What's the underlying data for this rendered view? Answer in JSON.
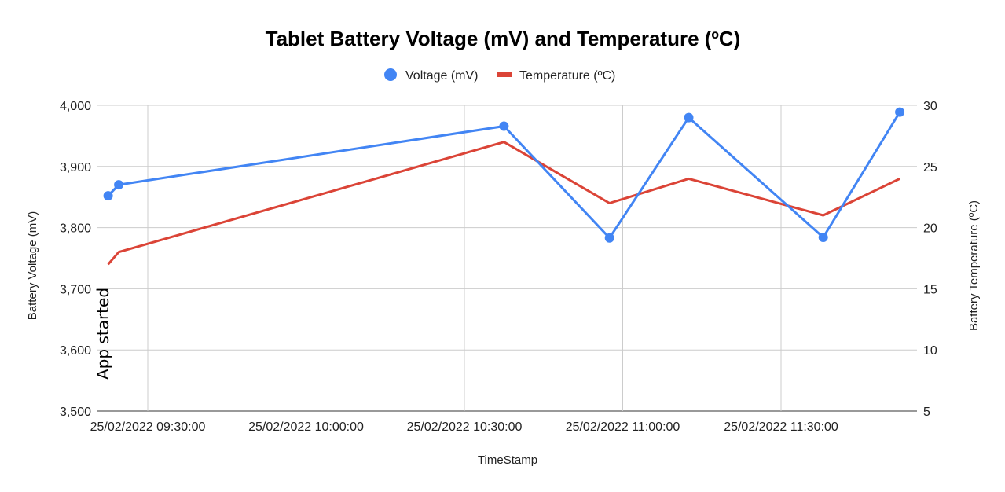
{
  "chart_data": {
    "type": "line",
    "title": "Tablet Battery Voltage (mV) and Temperature (ºC)",
    "xlabel": "TimeStamp",
    "ylabel_left": "Battery Voltage (mV)",
    "ylabel_right": "Battery Temperature (ºC)",
    "x_ticks": [
      "25/02/2022 09:30:00",
      "25/02/2022 10:00:00",
      "25/02/2022 10:30:00",
      "25/02/2022 11:00:00",
      "25/02/2022 11:30:00"
    ],
    "y_left_ticks": [
      "3,500",
      "3,600",
      "3,700",
      "3,800",
      "3,900",
      "4,000"
    ],
    "y_right_ticks": [
      "5",
      "10",
      "15",
      "20",
      "25",
      "30"
    ],
    "ylim_left": [
      3500,
      4000
    ],
    "ylim_right": [
      5,
      30
    ],
    "grid": true,
    "legend_position": "top",
    "annotation": {
      "text": "App started",
      "x": "25/02/2022 09:25:30"
    },
    "series": [
      {
        "name": "Voltage (mV)",
        "axis": "left",
        "style": "line-markers",
        "color": "#4285F4",
        "x": [
          "25/02/2022 09:22:30",
          "25/02/2022 09:24:30",
          "25/02/2022 10:37:30",
          "25/02/2022 10:57:30",
          "25/02/2022 11:12:30",
          "25/02/2022 11:38:00",
          "25/02/2022 11:52:30"
        ],
        "values": [
          3852,
          3870,
          3966,
          3783,
          3980,
          3784,
          3989
        ]
      },
      {
        "name": "Temperature (ºC)",
        "axis": "right",
        "style": "line",
        "color": "#DB4437",
        "x": [
          "25/02/2022 09:22:30",
          "25/02/2022 09:24:30",
          "25/02/2022 10:37:30",
          "25/02/2022 10:57:30",
          "25/02/2022 11:12:30",
          "25/02/2022 11:38:00",
          "25/02/2022 11:52:30"
        ],
        "values": [
          17,
          18,
          27,
          22,
          24,
          21,
          24
        ]
      }
    ]
  }
}
